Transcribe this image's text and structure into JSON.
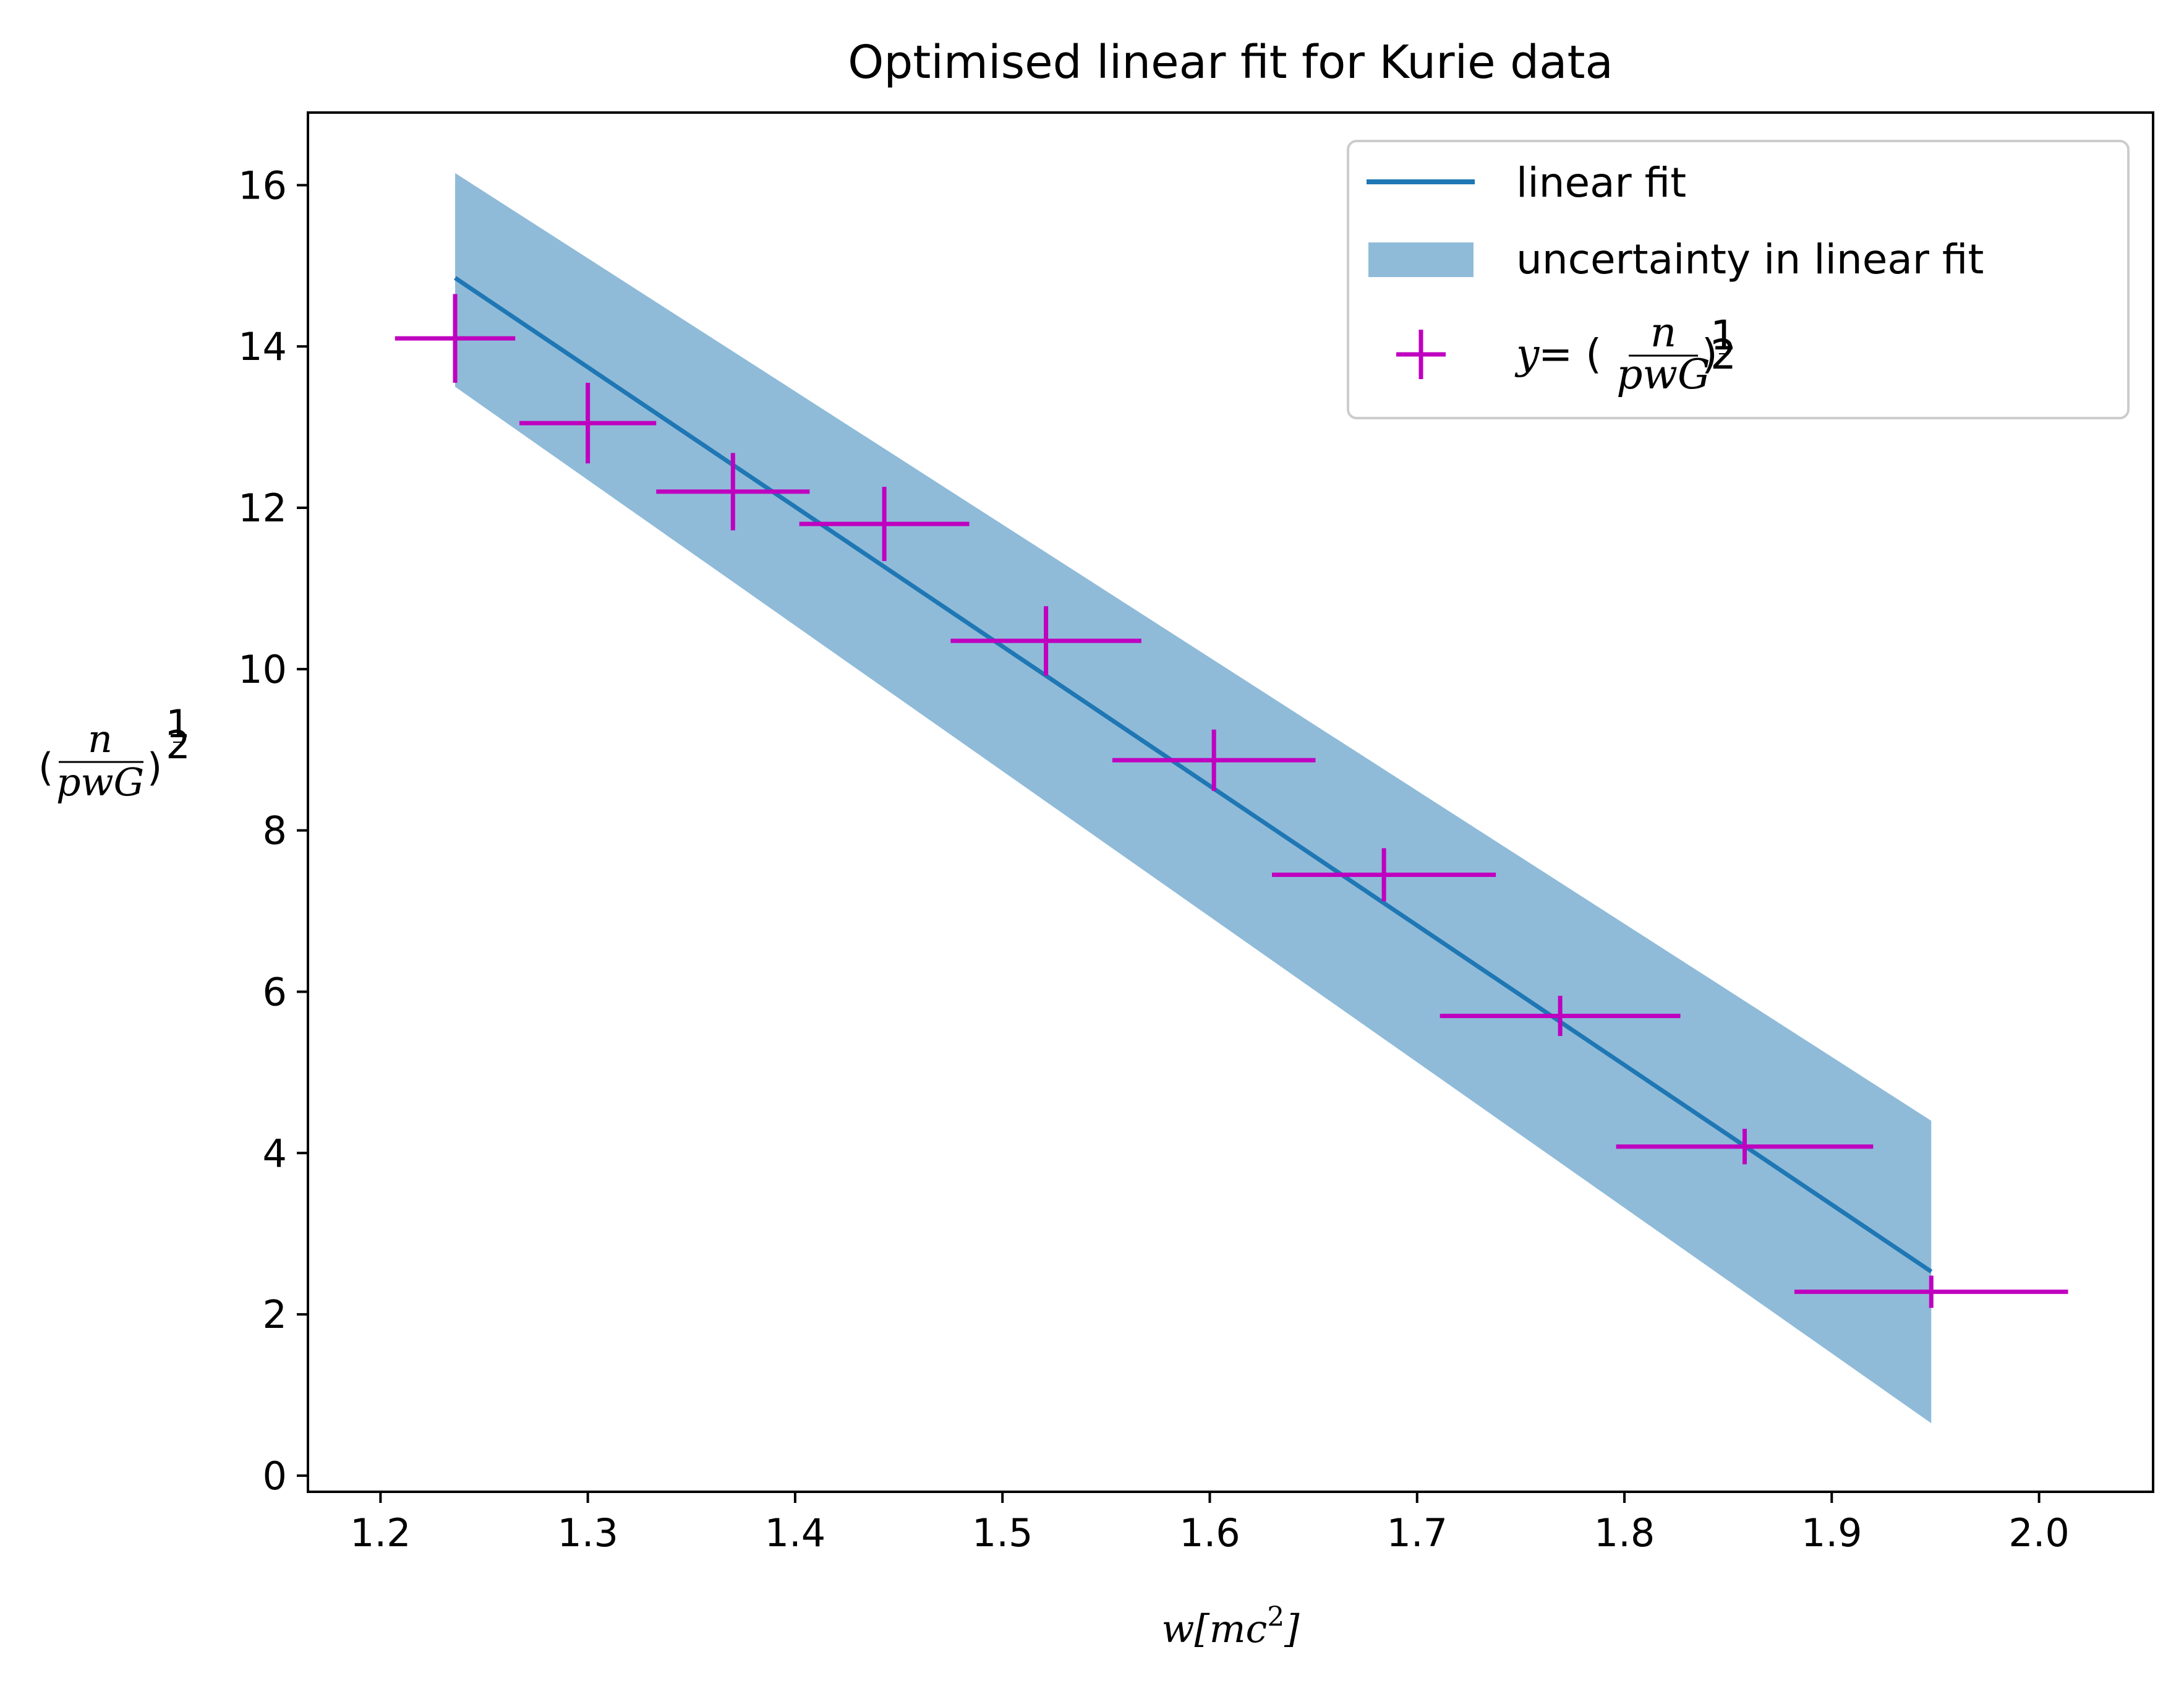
{
  "chart_data": {
    "type": "scatter",
    "title": "Optimised linear fit for Kurie data",
    "xlabel": "w[mc²]",
    "xlabel_parts": {
      "main": "w[mc",
      "sup": "2",
      "end": "]"
    },
    "ylabel": "(n/pwG)^(1/2)",
    "ylabel_parts": {
      "num": "n",
      "den": "pwG",
      "exp_num": "1",
      "exp_den": "2"
    },
    "xlim": [
      1.165,
      2.055
    ],
    "ylim": [
      -0.2,
      16.9
    ],
    "grid": false,
    "legend_position": "top-right",
    "x_ticks": [
      1.2,
      1.3,
      1.4,
      1.5,
      1.6,
      1.7,
      1.8,
      1.9,
      2.0
    ],
    "x_tick_labels": [
      "1.2",
      "1.3",
      "1.4",
      "1.5",
      "1.6",
      "1.7",
      "1.8",
      "1.9",
      "2.0"
    ],
    "y_ticks": [
      0,
      2,
      4,
      6,
      8,
      10,
      12,
      14,
      16
    ],
    "y_tick_labels": [
      "0",
      "2",
      "4",
      "6",
      "8",
      "10",
      "12",
      "14",
      "16"
    ],
    "colors": {
      "fit": "#1f77b4",
      "band": "#8fbbd9",
      "points": "#bf00bf"
    },
    "series": [
      {
        "name": "linear fit",
        "kind": "line",
        "x": [
          1.236,
          1.948
        ],
        "y": [
          14.85,
          2.53
        ]
      },
      {
        "name": "uncertainty in linear fit",
        "kind": "band",
        "x": [
          1.236,
          1.948
        ],
        "y_upper": [
          16.15,
          4.4
        ],
        "y_lower": [
          13.5,
          0.65
        ]
      },
      {
        "name": "y = (n/pwG)^(1/2)",
        "kind": "errorbar",
        "points": [
          {
            "x": 1.236,
            "y": 14.1,
            "xerr": 0.029,
            "yerr": 0.55
          },
          {
            "x": 1.3,
            "y": 13.05,
            "xerr": 0.033,
            "yerr": 0.5
          },
          {
            "x": 1.37,
            "y": 12.2,
            "xerr": 0.037,
            "yerr": 0.48
          },
          {
            "x": 1.443,
            "y": 11.8,
            "xerr": 0.041,
            "yerr": 0.46
          },
          {
            "x": 1.521,
            "y": 10.35,
            "xerr": 0.046,
            "yerr": 0.43
          },
          {
            "x": 1.602,
            "y": 8.87,
            "xerr": 0.049,
            "yerr": 0.38
          },
          {
            "x": 1.684,
            "y": 7.45,
            "xerr": 0.054,
            "yerr": 0.33
          },
          {
            "x": 1.769,
            "y": 5.7,
            "xerr": 0.058,
            "yerr": 0.25
          },
          {
            "x": 1.858,
            "y": 4.08,
            "xerr": 0.062,
            "yerr": 0.22
          },
          {
            "x": 1.948,
            "y": 2.28,
            "xerr": 0.066,
            "yerr": 0.2
          }
        ]
      }
    ],
    "legend": {
      "fit_label": "linear fit",
      "band_label": "uncertainty in linear fit",
      "points_label_parts": {
        "y": "y",
        "eq": " = (",
        "num": "n",
        "den": "pwG",
        "close": ")",
        "exp_num": "1",
        "exp_den": "2"
      }
    }
  }
}
